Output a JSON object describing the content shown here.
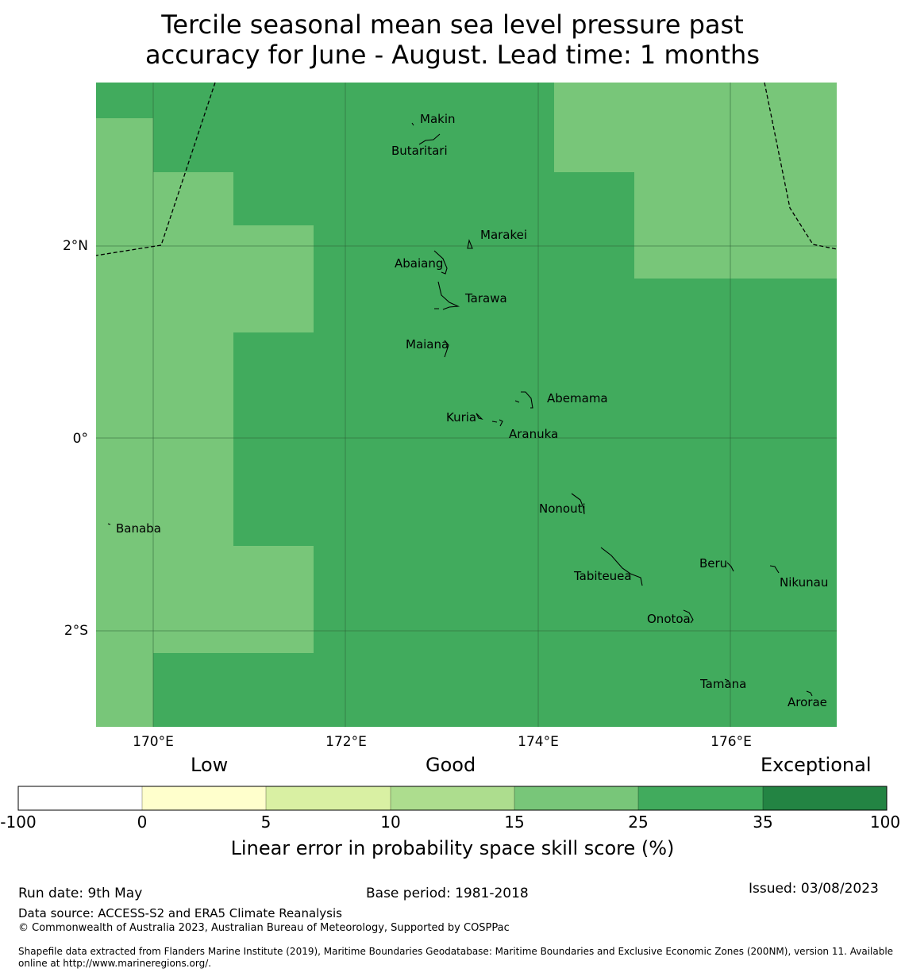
{
  "title": {
    "line1": "Tercile seasonal mean sea level pressure past",
    "line2": "accuracy for June - August. Lead time: 1 months"
  },
  "axes": {
    "x_ticks": [
      "170°E",
      "172°E",
      "174°E",
      "176°E"
    ],
    "y_ticks": [
      "2°N",
      "0°",
      "2°S"
    ]
  },
  "colors": {
    "lt_neg100_0": "#ffffff",
    "0_5": "#ffffcc",
    "5_10": "#d9f0a3",
    "10_15": "#addd8e",
    "15_25": "#78c679",
    "25_35": "#41ab5d",
    "35_100": "#238443",
    "grid": "#2e5f36",
    "land_outline": "#000000",
    "eez_boundary": "#000000"
  },
  "islands": [
    {
      "name": "Makin"
    },
    {
      "name": "Butaritari"
    },
    {
      "name": "Marakei"
    },
    {
      "name": "Abaiang"
    },
    {
      "name": "Tarawa"
    },
    {
      "name": "Maiana"
    },
    {
      "name": "Abemama"
    },
    {
      "name": "Kuria"
    },
    {
      "name": "Aranuka"
    },
    {
      "name": "Nonouti"
    },
    {
      "name": "Banaba"
    },
    {
      "name": "Tabiteuea"
    },
    {
      "name": "Beru"
    },
    {
      "name": "Nikunau"
    },
    {
      "name": "Onotoa"
    },
    {
      "name": "Tamana"
    },
    {
      "name": "Arorae"
    }
  ],
  "colorbar": {
    "category_labels": {
      "low": "Low",
      "good": "Good",
      "exceptional": "Exceptional"
    },
    "ticks": [
      "-100",
      "0",
      "5",
      "10",
      "15",
      "25",
      "35",
      "100"
    ],
    "title": "Linear error in probability space skill score (%)"
  },
  "footer": {
    "run_date": "Run date: 9th May",
    "base_period": "Base period: 1981-2018",
    "issued": "Issued: 03/08/2023",
    "data_source": "Data source: ACCESS-S2 and ERA5 Climate Reanalysis",
    "copyright": "© Commonwealth of Australia 2023, Australian Bureau of Meteorology, Supported by COSPPac",
    "shapefile_line1": "Shapefile data extracted from Flanders Marine Institute (2019), Maritime Boundaries Geodatabase: Maritime Boundaries and Exclusive Economic Zones (200NM), version 11. Available",
    "shapefile_line2": "online at http://www.marineregions.org/."
  }
}
